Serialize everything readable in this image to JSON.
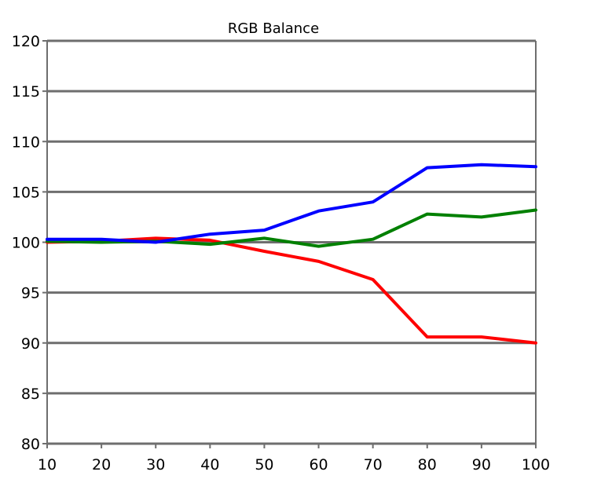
{
  "chart_data": {
    "type": "line",
    "title": "RGB Balance",
    "xlabel": "",
    "ylabel": "",
    "xlim": [
      10,
      100
    ],
    "ylim": [
      80,
      120
    ],
    "x_ticks": [
      10,
      20,
      30,
      40,
      50,
      60,
      70,
      80,
      90,
      100
    ],
    "y_ticks": [
      80,
      85,
      90,
      95,
      100,
      105,
      110,
      115,
      120
    ],
    "grid": "horizontal",
    "legend": "none",
    "x": [
      10,
      20,
      30,
      40,
      50,
      60,
      70,
      80,
      90,
      100
    ],
    "series": [
      {
        "color": "#ff0000",
        "values": [
          100.0,
          100.1,
          100.4,
          100.2,
          99.1,
          98.1,
          96.3,
          90.6,
          90.6,
          90.0
        ]
      },
      {
        "color": "#008000",
        "values": [
          100.1,
          100.0,
          100.1,
          99.8,
          100.4,
          99.6,
          100.3,
          102.8,
          102.5,
          103.2
        ]
      },
      {
        "color": "#0000ff",
        "values": [
          100.3,
          100.3,
          100.0,
          100.8,
          101.2,
          103.1,
          104.0,
          107.4,
          107.7,
          107.5
        ]
      }
    ],
    "colors": {
      "grid": "#6e6e6e",
      "axis": "#6e6e6e"
    }
  }
}
